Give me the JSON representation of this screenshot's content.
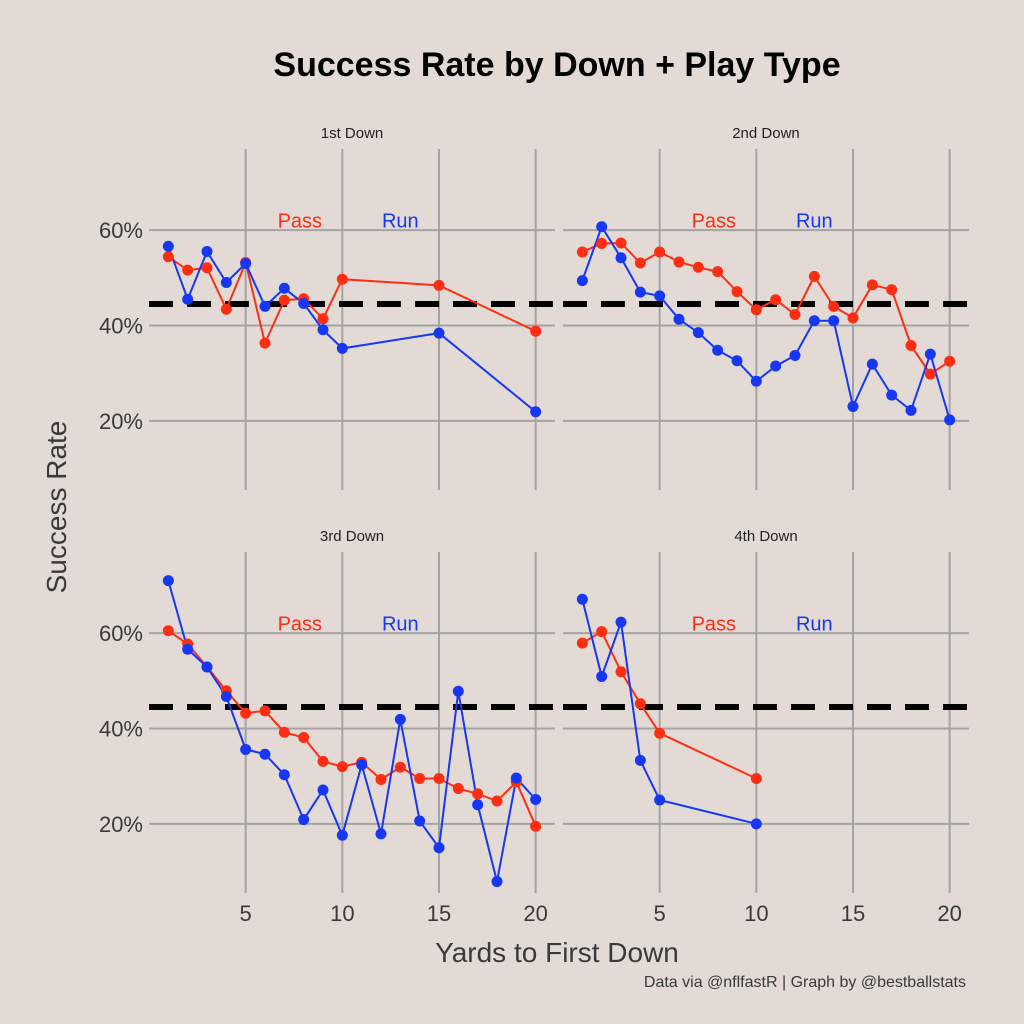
{
  "title": "Success Rate by Down + Play Type",
  "caption": "Data via @nflfastR | Graph by @bestballstats",
  "colors": {
    "pass": "#ff2e12",
    "run": "#1637f5",
    "background": "#e3dad5"
  },
  "chart_data": {
    "type": "line",
    "title": "Success Rate by Down + Play Type",
    "xlabel": "Yards to First Down",
    "ylabel": "Success Rate",
    "xlim": [
      0,
      21
    ],
    "ylim": [
      0.055,
      0.77
    ],
    "x_ticks": [
      5,
      10,
      15,
      20
    ],
    "x_tick_labels": [
      "5",
      "10",
      "15",
      "20"
    ],
    "y_ticks": [
      0.2,
      0.4,
      0.6
    ],
    "y_tick_labels": [
      "20%",
      "40%",
      "60%"
    ],
    "grid": true,
    "legend": "annotations",
    "reference_line": 0.445,
    "series_names": [
      "Pass",
      "Run"
    ],
    "panels": [
      {
        "label": "1st Down",
        "series": [
          {
            "name": "Pass",
            "x": [
              1,
              2,
              3,
              4,
              5,
              6,
              7,
              8,
              9,
              10,
              15,
              20
            ],
            "y": [
              0.544,
              0.516,
              0.521,
              0.434,
              0.532,
              0.363,
              0.453,
              0.456,
              0.414,
              0.497,
              0.484,
              0.388
            ]
          },
          {
            "name": "Run",
            "x": [
              1,
              2,
              3,
              4,
              5,
              6,
              7,
              8,
              9,
              10,
              15,
              20
            ],
            "y": [
              0.566,
              0.455,
              0.555,
              0.49,
              0.53,
              0.44,
              0.478,
              0.446,
              0.391,
              0.352,
              0.384,
              0.219
            ]
          }
        ]
      },
      {
        "label": "2nd Down",
        "series": [
          {
            "name": "Pass",
            "x": [
              1,
              2,
              3,
              4,
              5,
              6,
              7,
              8,
              9,
              10,
              11,
              12,
              13,
              14,
              15,
              16,
              17,
              18,
              19,
              20
            ],
            "y": [
              0.554,
              0.572,
              0.573,
              0.531,
              0.554,
              0.533,
              0.522,
              0.513,
              0.471,
              0.433,
              0.454,
              0.423,
              0.503,
              0.44,
              0.416,
              0.485,
              0.475,
              0.358,
              0.298,
              0.325
            ]
          },
          {
            "name": "Run",
            "x": [
              1,
              2,
              3,
              4,
              5,
              6,
              7,
              8,
              9,
              10,
              11,
              12,
              13,
              14,
              15,
              16,
              17,
              18,
              19,
              20
            ],
            "y": [
              0.494,
              0.607,
              0.542,
              0.47,
              0.462,
              0.413,
              0.385,
              0.348,
              0.326,
              0.283,
              0.315,
              0.337,
              0.41,
              0.41,
              0.23,
              0.319,
              0.254,
              0.222,
              0.34,
              0.202
            ]
          }
        ]
      },
      {
        "label": "3rd Down",
        "series": [
          {
            "name": "Pass",
            "x": [
              1,
              2,
              3,
              4,
              5,
              6,
              7,
              8,
              9,
              10,
              11,
              12,
              13,
              14,
              15,
              16,
              17,
              18,
              19,
              20
            ],
            "y": [
              0.605,
              0.577,
              0.529,
              0.479,
              0.432,
              0.437,
              0.392,
              0.381,
              0.331,
              0.32,
              0.329,
              0.293,
              0.319,
              0.295,
              0.295,
              0.274,
              0.263,
              0.248,
              0.288,
              0.195
            ]
          },
          {
            "name": "Run",
            "x": [
              1,
              2,
              3,
              4,
              5,
              6,
              7,
              8,
              9,
              10,
              11,
              12,
              13,
              14,
              15,
              16,
              17,
              18,
              19,
              20
            ],
            "y": [
              0.71,
              0.566,
              0.529,
              0.467,
              0.356,
              0.346,
              0.303,
              0.209,
              0.271,
              0.176,
              0.324,
              0.179,
              0.419,
              0.206,
              0.15,
              0.478,
              0.24,
              0.079,
              0.296,
              0.251
            ]
          }
        ]
      },
      {
        "label": "4th Down",
        "series": [
          {
            "name": "Pass",
            "x": [
              1,
              2,
              3,
              4,
              5,
              10
            ],
            "y": [
              0.579,
              0.603,
              0.519,
              0.452,
              0.39,
              0.295
            ]
          },
          {
            "name": "Run",
            "x": [
              1,
              2,
              3,
              4,
              5,
              10
            ],
            "y": [
              0.671,
              0.509,
              0.623,
              0.333,
              0.25,
              0.2
            ]
          }
        ]
      }
    ]
  }
}
